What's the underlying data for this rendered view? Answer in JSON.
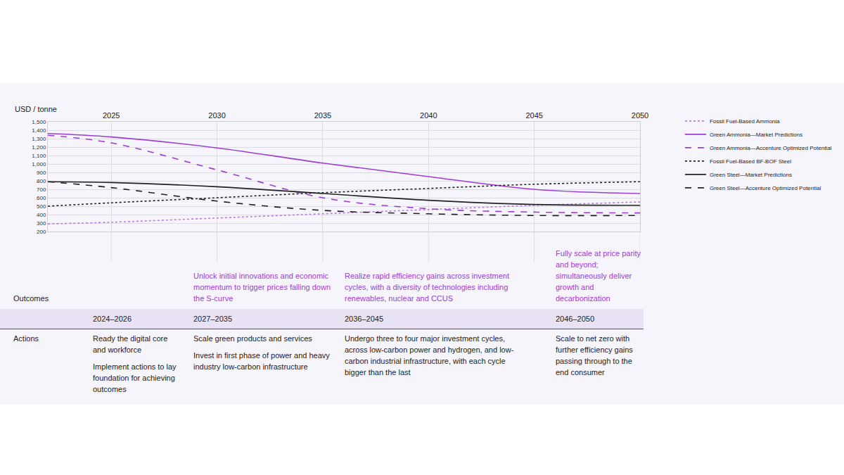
{
  "chart_data": {
    "type": "line",
    "y_label": "USD / tonne",
    "x": [
      2022,
      2025,
      2030,
      2035,
      2040,
      2045,
      2050
    ],
    "xlim": [
      2022,
      2050
    ],
    "xticks": [
      2025,
      2030,
      2035,
      2040,
      2045,
      2050
    ],
    "ylim": [
      200,
      1500
    ],
    "yticks": [
      200,
      300,
      400,
      500,
      600,
      700,
      800,
      900,
      {
        "value": 1000,
        "label": "1,000"
      },
      {
        "value": 1100,
        "label": "1,100"
      },
      {
        "value": 1200,
        "label": "1,200"
      },
      {
        "value": 1300,
        "label": "1,300"
      },
      {
        "value": 1400,
        "label": "1,400"
      },
      {
        "value": 1500,
        "label": "1,500"
      }
    ],
    "grid": true,
    "legend": "right",
    "series": [
      {
        "name": "Fossil Fuel-Based Ammonia",
        "color": "#b57ed6",
        "line_style": "dotted",
        "values": [
          290,
          310,
          360,
          410,
          460,
          510,
          550
        ]
      },
      {
        "name": "Green Ammonia—Market Predictions",
        "color": "#9a3fd0",
        "line_style": "solid",
        "values": [
          1360,
          1320,
          1190,
          1010,
          850,
          700,
          650
        ]
      },
      {
        "name": "Green Ammonia—Accenture Optimized Potential",
        "color": "#9a3fd0",
        "line_style": "dashed",
        "values": [
          1340,
          1250,
          930,
          600,
          470,
          430,
          420
        ]
      },
      {
        "name": "Fossil Fuel-Based BF-BOF Steel",
        "color": "#222222",
        "line_style": "dotted",
        "values": [
          500,
          540,
          600,
          660,
          710,
          760,
          790
        ]
      },
      {
        "name": "Green Steel—Market Predictions",
        "color": "#222222",
        "line_style": "solid",
        "values": [
          790,
          780,
          730,
          650,
          570,
          520,
          510
        ]
      },
      {
        "name": "Green Steel—Accenture Optimized Potential",
        "color": "#222222",
        "line_style": "dashed",
        "values": [
          790,
          720,
          560,
          450,
          410,
          390,
          390
        ]
      }
    ]
  },
  "timeline": {
    "outcomes_label": "Outcomes",
    "actions_label": "Actions",
    "phases": [
      {
        "period": "2024–2026",
        "actions": [
          "Ready the digital core and workforce",
          "Implement actions to lay foundation for achieving outcomes"
        ]
      },
      {
        "period": "2027–2035",
        "outcome": "Unlock initial innovations and economic momentum to trigger prices falling down the S-curve",
        "actions": [
          "Scale green products and services",
          "Invest in first phase of power and heavy industry low-carbon infrastructure"
        ]
      },
      {
        "period": "2036–2045",
        "outcome": "Realize rapid efficiency gains across investment cycles, with a diversity of technologies including renewables, nuclear and CCUS",
        "actions": [
          "Undergo three to four major investment cycles, across low-carbon power and hydrogen, and low-carbon industrial infrastructure, with each cycle bigger than the last"
        ]
      },
      {
        "period": "2046–2050",
        "outcome": "Fully scale at price parity and beyond; simultaneously deliver growth and decarbonization",
        "actions": [
          "Scale to net zero with further efficiency gains passing through to the end consumer"
        ]
      }
    ]
  }
}
